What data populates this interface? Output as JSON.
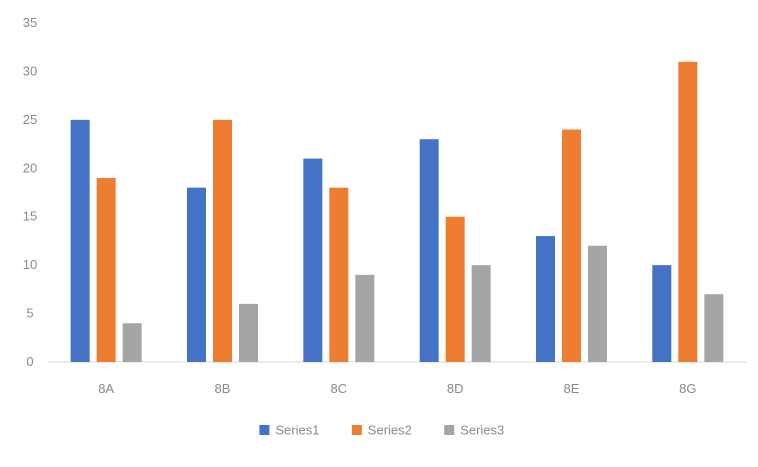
{
  "chart_data": {
    "type": "bar",
    "categories": [
      "8A",
      "8B",
      "8C",
      "8D",
      "8E",
      "8G"
    ],
    "series": [
      {
        "name": "Series1",
        "color": "#4472c4",
        "values": [
          25,
          18,
          21,
          23,
          13,
          10
        ]
      },
      {
        "name": "Series2",
        "color": "#ed7d31",
        "values": [
          19,
          25,
          18,
          15,
          24,
          31
        ]
      },
      {
        "name": "Series3",
        "color": "#a5a5a5",
        "values": [
          4,
          6,
          9,
          10,
          12,
          7
        ]
      }
    ],
    "title": "",
    "xlabel": "",
    "ylabel": "",
    "ylim": [
      0,
      35
    ],
    "yticks": [
      0,
      5,
      10,
      15,
      20,
      25,
      30,
      35
    ],
    "grid": false,
    "legend": "bottom-center"
  }
}
